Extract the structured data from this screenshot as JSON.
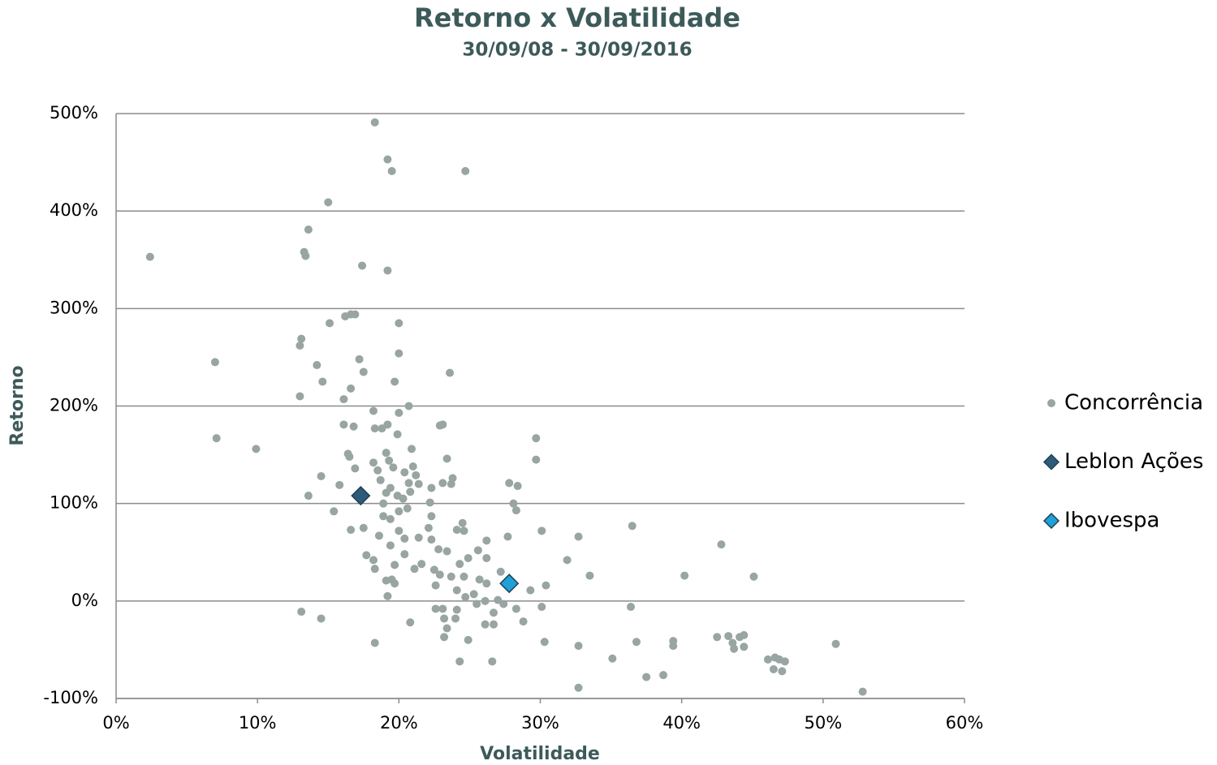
{
  "chart_data": {
    "type": "scatter",
    "title": "Retorno x Volatilidade",
    "subtitle": "30/09/08 - 30/09/2016",
    "xlabel": "Volatilidade",
    "ylabel": "Retorno",
    "xlim": [
      0,
      60
    ],
    "ylim": [
      -100,
      500
    ],
    "xticks": [
      {
        "value": 0,
        "label": "0%"
      },
      {
        "value": 10,
        "label": "10%"
      },
      {
        "value": 20,
        "label": "20%"
      },
      {
        "value": 30,
        "label": "30%"
      },
      {
        "value": 40,
        "label": "40%"
      },
      {
        "value": 50,
        "label": "50%"
      },
      {
        "value": 60,
        "label": "60%"
      }
    ],
    "yticks": [
      {
        "value": -100,
        "label": "-100%"
      },
      {
        "value": 0,
        "label": "0%"
      },
      {
        "value": 100,
        "label": "100%"
      },
      {
        "value": 200,
        "label": "200%"
      },
      {
        "value": 300,
        "label": "300%"
      },
      {
        "value": 400,
        "label": "400%"
      },
      {
        "value": 500,
        "label": "500%"
      }
    ],
    "grid": true,
    "legend": "right",
    "series": [
      {
        "name": "Concorrência",
        "color": "#98a5a2",
        "marker": "circle",
        "x": [
          18.3,
          19.2,
          19.5,
          24.7,
          15.0,
          13.6,
          2.4,
          13.3,
          13.4,
          17.4,
          19.2,
          16.9,
          16.6,
          16.2,
          15.1,
          20.0,
          13.1,
          13.0,
          7.0,
          17.2,
          20.0,
          14.2,
          17.5,
          23.6,
          19.7,
          14.6,
          16.6,
          13.0,
          16.1,
          20.7,
          18.2,
          20.0,
          16.1,
          16.8,
          19.2,
          23.1,
          18.3,
          18.8,
          19.9,
          22.9,
          7.1,
          29.7,
          9.9,
          20.9,
          16.4,
          16.5,
          19.1,
          19.3,
          23.4,
          29.7,
          18.2,
          19.6,
          21.0,
          16.9,
          18.5,
          21.2,
          14.5,
          20.4,
          23.8,
          18.7,
          23.1,
          23.7,
          27.8,
          28.4,
          15.8,
          20.7,
          21.4,
          19.4,
          22.3,
          19.1,
          20.8,
          13.6,
          19.9,
          20.3,
          22.2,
          28.1,
          18.9,
          28.3,
          15.4,
          20.6,
          20.0,
          18.9,
          22.3,
          19.4,
          24.5,
          22.1,
          17.5,
          18.6,
          24.1,
          30.1,
          16.6,
          24.6,
          20.0,
          20.4,
          21.4,
          22.3,
          27.7,
          32.7,
          36.5,
          26.2,
          42.8,
          19.4,
          22.8,
          25.6,
          17.7,
          23.4,
          20.4,
          31.9,
          26.2,
          24.9,
          18.2,
          24.3,
          19.7,
          18.3,
          21.6,
          27.2,
          21.1,
          22.5,
          22.9,
          23.7,
          24.6,
          25.7,
          33.5,
          40.2,
          45.1,
          19.5,
          19.1,
          19.7,
          26.2,
          30.4,
          29.3,
          22.6,
          24.1,
          19.2,
          25.3,
          24.7,
          27.0,
          26.1,
          27.4,
          30.1,
          36.4,
          22.6,
          28.3,
          25.5,
          23.1,
          24.1,
          13.1,
          26.7,
          14.5,
          20.8,
          23.2,
          24.0,
          28.8,
          26.1,
          26.7,
          23.4,
          23.2,
          24.9,
          18.3,
          30.3,
          36.8,
          39.4,
          32.7,
          39.4,
          42.5,
          43.3,
          43.6,
          44.1,
          44.4,
          43.7,
          44.4,
          50.9,
          35.1,
          46.1,
          46.6,
          46.9,
          47.3,
          46.5,
          47.1,
          24.3,
          26.6,
          37.5,
          38.7,
          32.7,
          52.8
        ],
        "values": [
          491,
          453,
          441,
          441,
          409,
          381,
          353,
          358,
          354,
          344,
          339,
          294,
          294,
          292,
          285,
          285,
          269,
          262,
          245,
          248,
          254,
          242,
          235,
          234,
          225,
          225,
          218,
          210,
          207,
          200,
          195,
          193,
          181,
          179,
          181,
          181,
          177,
          177,
          171,
          180,
          167,
          167,
          156,
          156,
          151,
          148,
          152,
          144,
          146,
          145,
          142,
          137,
          138,
          136,
          134,
          129,
          128,
          132,
          126,
          124,
          121,
          120,
          121,
          118,
          119,
          121,
          120,
          116,
          116,
          111,
          112,
          108,
          108,
          105,
          101,
          100,
          100,
          93,
          92,
          95,
          92,
          87,
          87,
          84,
          80,
          75,
          75,
          67,
          73,
          72,
          73,
          72,
          72,
          64,
          65,
          63,
          66,
          66,
          77,
          62,
          58,
          57,
          53,
          52,
          47,
          51,
          48,
          42,
          44,
          44,
          42,
          38,
          37,
          33,
          38,
          30,
          33,
          32,
          27,
          25,
          25,
          22,
          26,
          26,
          25,
          22,
          21,
          18,
          18,
          16,
          11,
          16,
          11,
          5,
          7,
          4,
          1,
          0,
          -3,
          -6,
          -6,
          -8,
          -8,
          -3,
          -8,
          -9,
          -11,
          -12,
          -18,
          -22,
          -18,
          -18,
          -21,
          -24,
          -24,
          -28,
          -37,
          -40,
          -43,
          -42,
          -42,
          -41,
          -46,
          -46,
          -37,
          -36,
          -43,
          -37,
          -35,
          -49,
          -47,
          -44,
          -59,
          -60,
          -58,
          -60,
          -62,
          -70,
          -72,
          -62,
          -62,
          -78,
          -76,
          -89,
          -93
        ]
      },
      {
        "name": "Leblon Ações",
        "color": "#2e5b7a",
        "marker": "diamond",
        "x": [
          17.3
        ],
        "values": [
          108
        ]
      },
      {
        "name": "Ibovespa",
        "color": "#1fa0d8",
        "marker": "diamond",
        "x": [
          27.8
        ],
        "values": [
          18
        ]
      }
    ]
  }
}
